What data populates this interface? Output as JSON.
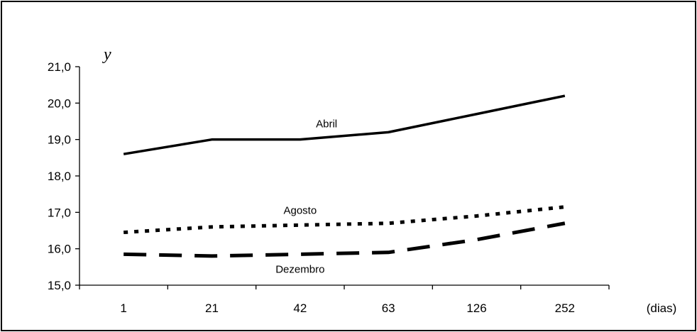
{
  "chart_data": {
    "type": "line",
    "title": "",
    "xlabel": "(dias)",
    "ylabel": "y",
    "categories": [
      "1",
      "21",
      "42",
      "63",
      "126",
      "252"
    ],
    "ylim": [
      15.0,
      21.0
    ],
    "yticks": [
      "15,0",
      "16,0",
      "17,0",
      "18,0",
      "19,0",
      "20,0",
      "21,0"
    ],
    "grid": false,
    "legend": "none",
    "series": [
      {
        "name": "Abril",
        "style": "solid",
        "color": "#000000",
        "values": [
          18.6,
          19.0,
          19.0,
          19.2,
          19.7,
          20.2
        ]
      },
      {
        "name": "Agosto",
        "style": "dotted",
        "color": "#000000",
        "values": [
          16.45,
          16.6,
          16.65,
          16.7,
          16.9,
          17.15
        ]
      },
      {
        "name": "Dezembro",
        "style": "dashed",
        "color": "#000000",
        "values": [
          15.85,
          15.8,
          15.85,
          15.9,
          16.25,
          16.7
        ]
      }
    ]
  }
}
